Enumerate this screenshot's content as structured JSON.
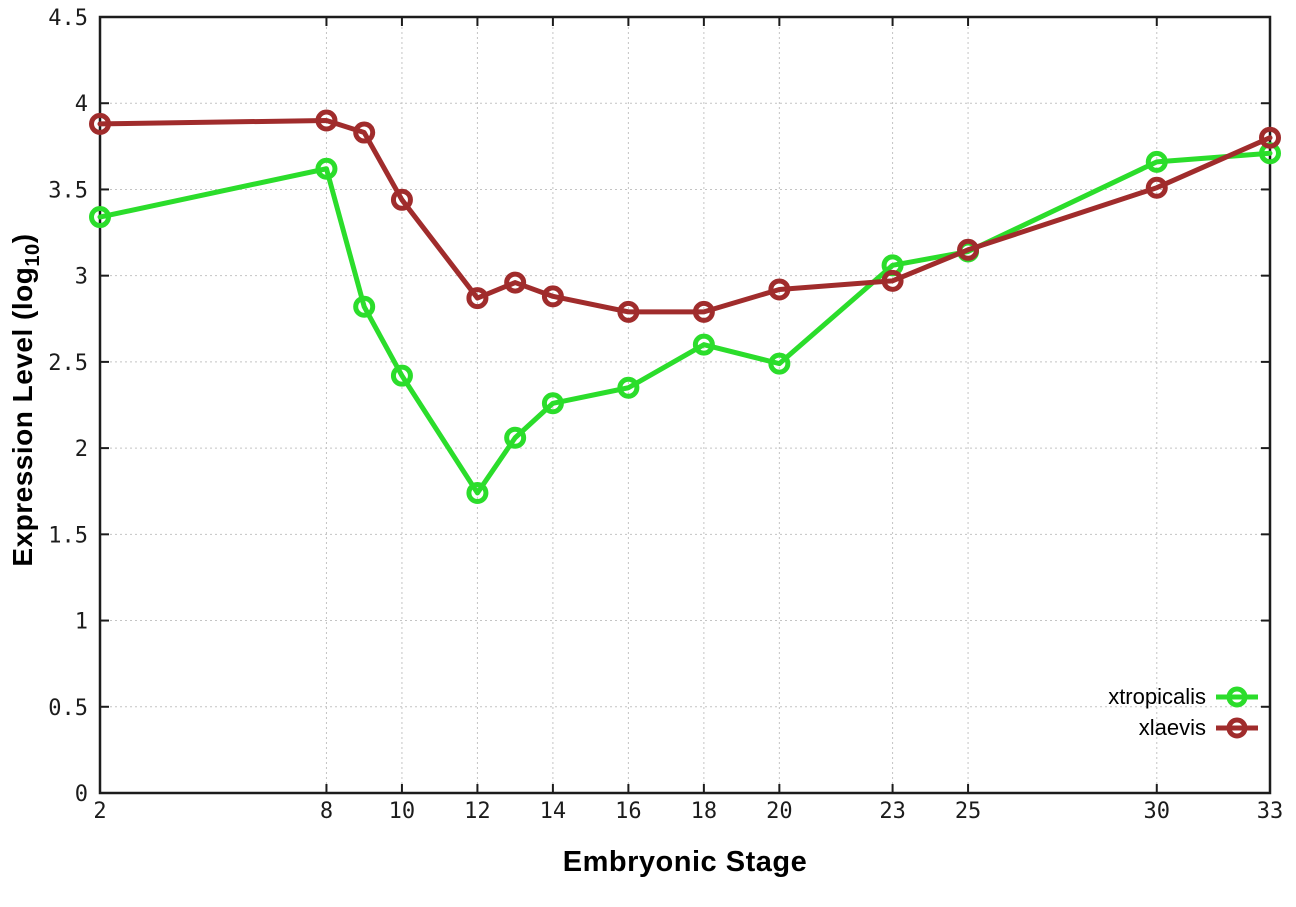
{
  "figure": {
    "background": "#ffffff",
    "axis_color": "#1c1c1c",
    "grid_color": "#c4c4c4"
  },
  "chart_data": {
    "type": "line",
    "title": "",
    "xlabel": "Embryonic Stage",
    "ylabel": "Expression Level (log10)",
    "ylabel_main": "Expression Level (log",
    "ylabel_sub": "10",
    "ylabel_close": ")",
    "xlim": [
      2,
      33
    ],
    "ylim": [
      0,
      4.5
    ],
    "x_ticks": [
      2,
      8,
      10,
      12,
      14,
      16,
      18,
      20,
      23,
      25,
      30,
      33
    ],
    "y_ticks": [
      0,
      0.5,
      1,
      1.5,
      2,
      2.5,
      3,
      3.5,
      4,
      4.5
    ],
    "grid": "dotted",
    "legend_position": "inside bottom-right",
    "marker": "open-circle",
    "x": [
      2,
      8,
      9,
      10,
      12,
      13,
      14,
      16,
      18,
      20,
      23,
      25,
      30,
      33
    ],
    "series": [
      {
        "name": "xtropicalis",
        "color": "#2bdd2b",
        "values": [
          3.34,
          3.62,
          2.82,
          2.42,
          1.74,
          2.06,
          2.26,
          2.35,
          2.6,
          2.49,
          3.06,
          3.14,
          3.66,
          3.71
        ]
      },
      {
        "name": "xlaevis",
        "color": "#a02c2c",
        "values": [
          3.88,
          3.9,
          3.83,
          3.44,
          2.87,
          2.96,
          2.88,
          2.79,
          2.79,
          2.92,
          2.97,
          3.15,
          3.51,
          3.8
        ]
      }
    ]
  }
}
